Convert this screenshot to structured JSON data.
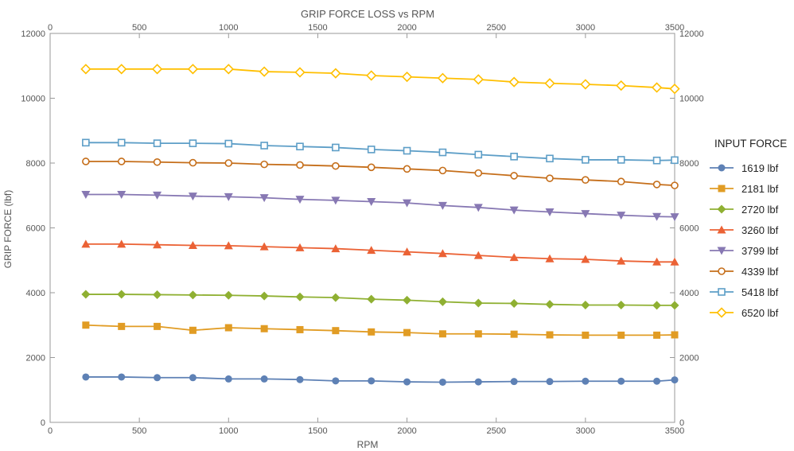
{
  "chart_data": {
    "type": "line",
    "title": "GRIP FORCE LOSS vs RPM",
    "xlabel": "RPM",
    "ylabel": "GRIP FORCE (lbf)",
    "xlim": [
      0,
      3500
    ],
    "ylim": [
      0,
      12000
    ],
    "x_ticks": [
      0,
      500,
      1000,
      1500,
      2000,
      2500,
      3000,
      3500
    ],
    "y_ticks": [
      0,
      2000,
      4000,
      6000,
      8000,
      10000,
      12000
    ],
    "grid": false,
    "legend_title": "INPUT FORCE",
    "legend_position": "right",
    "x": [
      200,
      400,
      600,
      800,
      1000,
      1200,
      1400,
      1600,
      1800,
      2000,
      2200,
      2400,
      2600,
      2800,
      3000,
      3200,
      3400,
      3500
    ],
    "series": [
      {
        "name": "1619 lbf",
        "color": "#5e81b5",
        "marker": "circle",
        "values": [
          1400,
          1400,
          1380,
          1380,
          1340,
          1340,
          1320,
          1280,
          1280,
          1250,
          1240,
          1250,
          1260,
          1260,
          1270,
          1270,
          1270,
          1310
        ]
      },
      {
        "name": "2181 lbf",
        "color": "#e19c24",
        "marker": "square",
        "values": [
          3000,
          2960,
          2960,
          2840,
          2920,
          2890,
          2860,
          2830,
          2790,
          2770,
          2730,
          2730,
          2720,
          2700,
          2690,
          2690,
          2690,
          2700
        ]
      },
      {
        "name": "2720 lbf",
        "color": "#8fb032",
        "marker": "diamond",
        "values": [
          3950,
          3950,
          3940,
          3930,
          3920,
          3900,
          3870,
          3850,
          3800,
          3770,
          3720,
          3680,
          3670,
          3640,
          3620,
          3620,
          3610,
          3610
        ]
      },
      {
        "name": "3260 lbf",
        "color": "#eb6235",
        "marker": "triangle-up",
        "values": [
          5500,
          5500,
          5480,
          5460,
          5450,
          5420,
          5390,
          5360,
          5310,
          5260,
          5210,
          5150,
          5090,
          5050,
          5030,
          4980,
          4950,
          4950
        ]
      },
      {
        "name": "3799 lbf",
        "color": "#8778b3",
        "marker": "triangle-down",
        "values": [
          7030,
          7030,
          7010,
          6980,
          6960,
          6930,
          6880,
          6850,
          6810,
          6770,
          6690,
          6630,
          6550,
          6490,
          6440,
          6390,
          6350,
          6340
        ]
      },
      {
        "name": "4339 lbf",
        "color": "#c56e1a",
        "marker": "open-circle",
        "values": [
          8050,
          8050,
          8030,
          8010,
          8000,
          7960,
          7940,
          7910,
          7870,
          7820,
          7770,
          7690,
          7610,
          7530,
          7480,
          7430,
          7340,
          7310
        ]
      },
      {
        "name": "5418 lbf",
        "color": "#5d9ec7",
        "marker": "open-square",
        "values": [
          8630,
          8630,
          8610,
          8610,
          8600,
          8540,
          8510,
          8480,
          8420,
          8380,
          8330,
          8260,
          8200,
          8140,
          8100,
          8100,
          8080,
          8090
        ]
      },
      {
        "name": "6520 lbf",
        "color": "#ffbf00",
        "marker": "open-diamond",
        "values": [
          10900,
          10900,
          10900,
          10900,
          10900,
          10820,
          10800,
          10770,
          10700,
          10660,
          10620,
          10580,
          10500,
          10460,
          10430,
          10390,
          10330,
          10290
        ]
      }
    ]
  }
}
